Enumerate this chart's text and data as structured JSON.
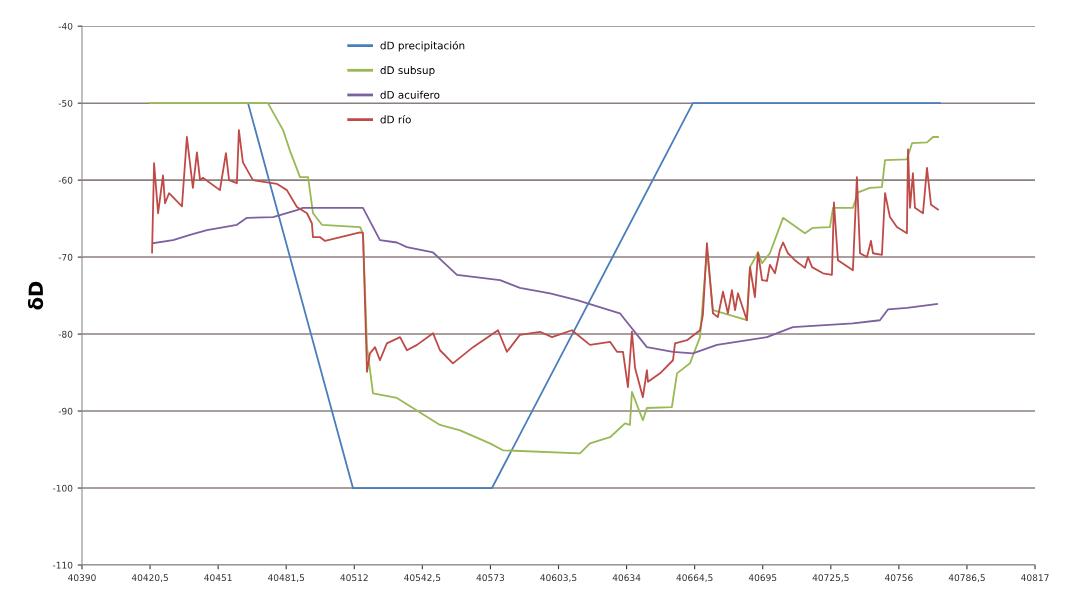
{
  "chart_data": {
    "type": "line",
    "ylabel": "δD",
    "xlim": [
      40390,
      40817
    ],
    "xticks": [
      40390,
      {
        "value": 40420.5,
        "label": "40420,5"
      },
      40451,
      {
        "value": 40481.5,
        "label": "40481,5"
      },
      40512,
      {
        "value": 40542.5,
        "label": "40542,5"
      },
      40573,
      {
        "value": 40603.5,
        "label": "40603,5"
      },
      40634,
      {
        "value": 40664.5,
        "label": "40664,5"
      },
      40695,
      {
        "value": 40725.5,
        "label": "40725,5"
      },
      40756,
      {
        "value": 40786.5,
        "label": "40786,5"
      },
      40817
    ],
    "ylim": [
      -110,
      -40
    ],
    "yticks": [
      -110,
      -100,
      -90,
      -80,
      -70,
      -60,
      -50,
      -40
    ],
    "grid": "y",
    "legend": "top",
    "marker": "none",
    "line_style": "solid",
    "series": [
      {
        "name": "dD precipitación",
        "color": "#4a7ebb",
        "x": [
          40464.4,
          40511.4,
          40573.7,
          40663.7,
          40774.4
        ],
        "values": [
          -50,
          -100,
          -100,
          -50,
          -50
        ]
      },
      {
        "name": "dD subsup",
        "color": "#98b954",
        "x": [
          40420.5,
          40464.4,
          40473.3,
          40480.1,
          40483.2,
          40487.7,
          40491.3,
          40493.5,
          40497.5,
          40514.6,
          40515.9,
          40517.7,
          40520.4,
          40531.1,
          40550.4,
          40559.4,
          40572.8,
          40578.6,
          40613.1,
          40617.6,
          40626.6,
          40633.3,
          40635.5,
          40636.4,
          40641.3,
          40643.1,
          40654.3,
          40656.6,
          40662.4,
          40666.9,
          40670.0,
          40672.7,
          40687.9,
          40689.3,
          40692.9,
          40694.7,
          40698.2,
          40704.1,
          40713.9,
          40717.5,
          40725.1,
          40726.5,
          40735.4,
          40737.7,
          40743.0,
          40748.4,
          40749.8,
          40759.6,
          40761.9,
          40768.6,
          40771.3,
          40773.5
        ],
        "values": [
          -50,
          -50,
          -50,
          -53.5,
          -56.2,
          -59.6,
          -59.6,
          -64.3,
          -65.8,
          -66.1,
          -66.9,
          -81.7,
          -87.7,
          -88.3,
          -91.8,
          -92.5,
          -94.2,
          -95.1,
          -95.5,
          -94.2,
          -93.4,
          -91.6,
          -91.8,
          -87.5,
          -91.2,
          -89.6,
          -89.5,
          -85.1,
          -83.8,
          -80.4,
          -69.1,
          -76.9,
          -78.2,
          -71.3,
          -69.4,
          -70.8,
          -69.5,
          -64.9,
          -66.9,
          -66.2,
          -66.1,
          -63.6,
          -63.6,
          -61.6,
          -61.0,
          -60.9,
          -57.4,
          -57.3,
          -55.2,
          -55.1,
          -54.4,
          -54.4
        ]
      },
      {
        "name": "dD acuifero",
        "color": "#7d60a0",
        "x": [
          40421.8,
          40430.8,
          40438.4,
          40446.0,
          40459.4,
          40463.9,
          40475.6,
          40486.3,
          40489.0,
          40515.9,
          40523.5,
          40531.1,
          40535.6,
          40547.3,
          40558.0,
          40577.3,
          40586.2,
          40599.7,
          40611.8,
          40631.0,
          40643.1,
          40654.8,
          40663.7,
          40674.5,
          40696.9,
          40708.5,
          40735.4,
          40747.5,
          40751.1,
          40759.6,
          40773.1
        ],
        "values": [
          -68.2,
          -67.8,
          -67.1,
          -66.5,
          -65.8,
          -64.9,
          -64.8,
          -63.9,
          -63.6,
          -63.6,
          -67.8,
          -68.1,
          -68.7,
          -69.4,
          -72.3,
          -73.0,
          -74.0,
          -74.7,
          -75.6,
          -77.3,
          -81.7,
          -82.3,
          -82.5,
          -81.4,
          -80.4,
          -79.1,
          -78.6,
          -78.2,
          -76.8,
          -76.6,
          -76.1
        ]
      },
      {
        "name": "dD río",
        "color": "#be4b48",
        "x": [
          40421.4,
          40422.3,
          40424.1,
          40426.3,
          40427.2,
          40429.0,
          40434.8,
          40437.0,
          40439.7,
          40441.5,
          40442.9,
          40444.2,
          40451.8,
          40454.5,
          40455.9,
          40459.4,
          40460.3,
          40462.1,
          40466.6,
          40477.4,
          40479.6,
          40481.8,
          40486.3,
          40490.8,
          40493.0,
          40493.5,
          40496.6,
          40498.9,
          40514.6,
          40515.9,
          40517.7,
          40519.0,
          40521.3,
          40523.5,
          40526.6,
          40532.5,
          40535.6,
          40540.1,
          40547.3,
          40550.4,
          40556.2,
          40565.2,
          40576.4,
          40580.4,
          40586.2,
          40595.2,
          40600.6,
          40609.5,
          40617.6,
          40626.6,
          40629.7,
          40632.4,
          40634.6,
          40636.4,
          40637.8,
          40641.3,
          40643.1,
          40643.6,
          40649.0,
          40654.8,
          40655.7,
          40661.1,
          40666.9,
          40668.2,
          40670.0,
          40672.7,
          40674.9,
          40677.2,
          40679.4,
          40681.2,
          40682.6,
          40683.9,
          40687.9,
          40689.3,
          40691.5,
          40692.9,
          40694.7,
          40696.9,
          40698.2,
          40700.5,
          40702.7,
          40704.1,
          40706.3,
          40709.4,
          40713.9,
          40715.3,
          40717.1,
          40722.0,
          40726.0,
          40726.9,
          40728.7,
          40735.4,
          40737.2,
          40738.6,
          40741.7,
          40743.5,
          40744.4,
          40748.4,
          40749.8,
          40752.0,
          40755.1,
          40759.6,
          40760.1,
          40761.0,
          40762.3,
          40763.2,
          40766.8,
          40768.6,
          40770.4,
          40773.5
        ],
        "values": [
          -69.4,
          -57.8,
          -64.3,
          -59.4,
          -63.0,
          -61.7,
          -63.4,
          -54.4,
          -61.0,
          -56.4,
          -60.0,
          -59.7,
          -61.3,
          -56.5,
          -60.0,
          -60.4,
          -53.5,
          -57.7,
          -60.0,
          -60.5,
          -60.9,
          -61.3,
          -63.5,
          -64.3,
          -65.6,
          -67.4,
          -67.4,
          -67.9,
          -66.8,
          -66.9,
          -84.9,
          -82.5,
          -81.7,
          -83.4,
          -81.2,
          -80.4,
          -82.1,
          -81.4,
          -79.9,
          -82.1,
          -83.8,
          -81.7,
          -79.5,
          -82.3,
          -80.1,
          -79.7,
          -80.4,
          -79.5,
          -81.4,
          -81.0,
          -82.3,
          -82.3,
          -86.9,
          -79.7,
          -84.4,
          -88.2,
          -84.7,
          -86.2,
          -85.1,
          -83.4,
          -81.2,
          -80.8,
          -79.5,
          -77.5,
          -68.2,
          -77.3,
          -77.8,
          -74.5,
          -77.3,
          -74.3,
          -76.9,
          -74.7,
          -78.2,
          -71.3,
          -75.2,
          -69.4,
          -73.0,
          -73.1,
          -71.0,
          -72.1,
          -69.1,
          -68.1,
          -69.5,
          -70.4,
          -71.4,
          -70.0,
          -71.3,
          -72.1,
          -72.3,
          -62.9,
          -70.4,
          -71.7,
          -59.6,
          -69.5,
          -70.0,
          -67.9,
          -69.5,
          -69.7,
          -61.7,
          -64.8,
          -66.1,
          -66.9,
          -56.0,
          -63.6,
          -59.1,
          -63.6,
          -64.3,
          -58.4,
          -63.2,
          -63.8
        ]
      }
    ]
  }
}
